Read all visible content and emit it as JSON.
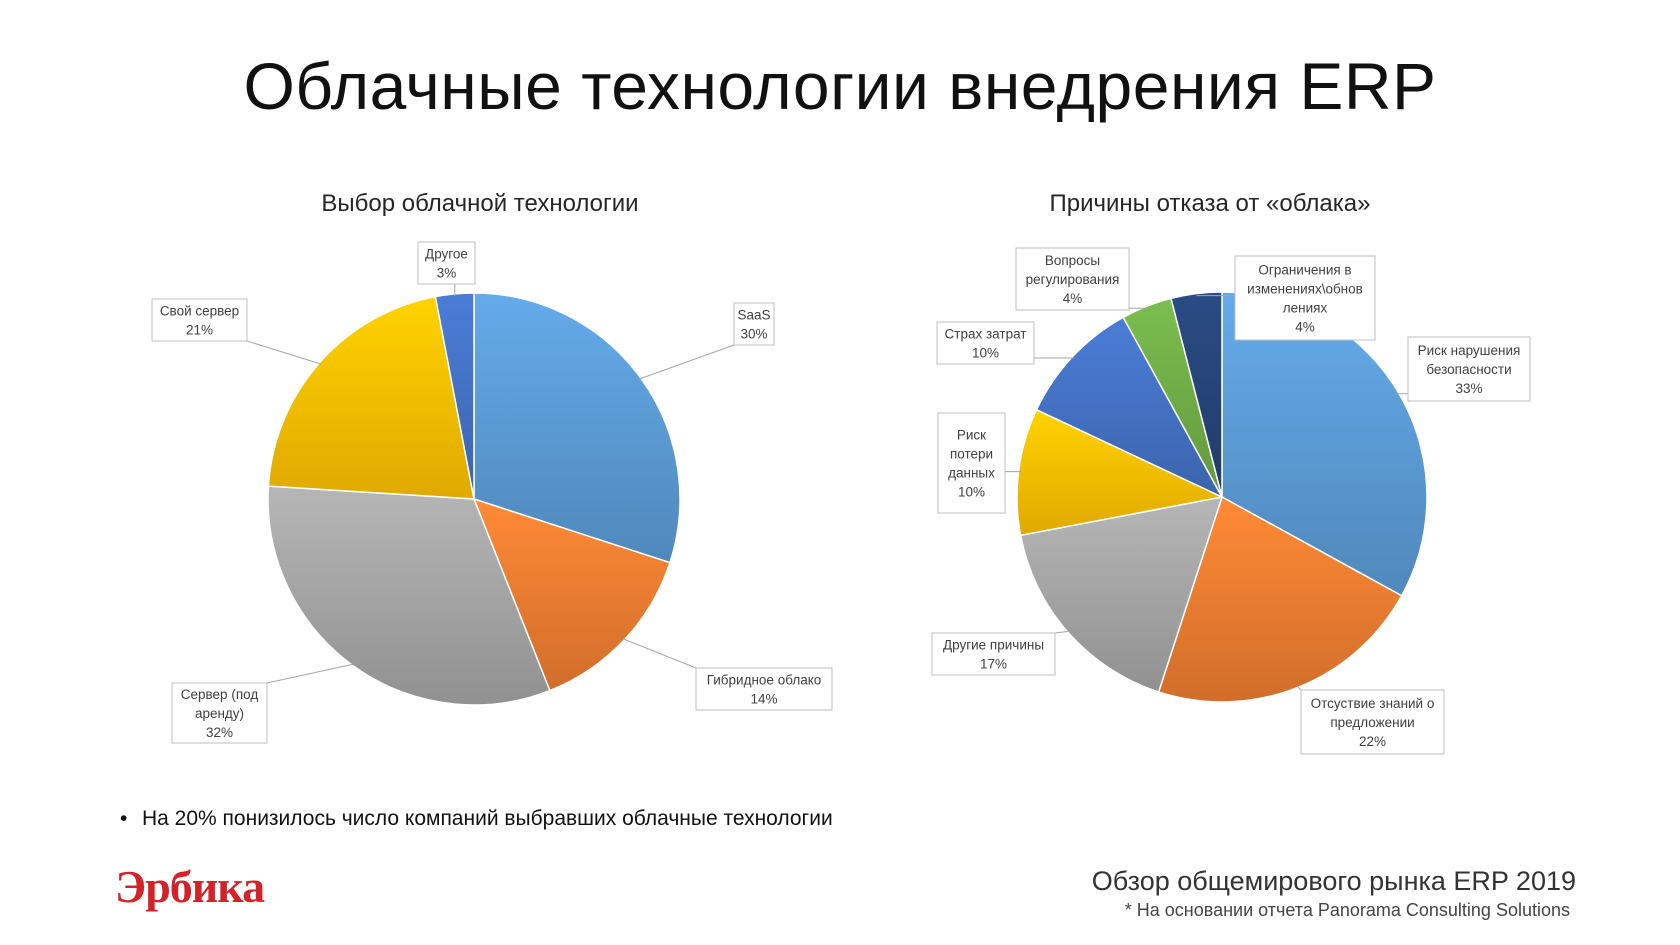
{
  "slide": {
    "title": "Облачные технологии внедрения ERP",
    "bullet": "На 20% понизилось число компаний выбравших облачные технологии",
    "logo": "Эрбика",
    "footer_title": "Обзор общемирового рынка ERP 2019",
    "footer_note": "* На основании отчета Panorama Consulting Solutions"
  },
  "chart_data": [
    {
      "type": "pie",
      "title": "Выбор облачной технологии",
      "slices": [
        {
          "label": [
            "SaaS"
          ],
          "value": 30,
          "color": "#5b9bd5"
        },
        {
          "label": [
            "Гибридное облако"
          ],
          "value": 14,
          "color": "#ed7d31"
        },
        {
          "label": [
            "Сервер (под",
            "аренду)"
          ],
          "value": 32,
          "color": "#a5a5a5"
        },
        {
          "label": [
            "Свой сервер"
          ],
          "value": 21,
          "color": "#ffc000"
        },
        {
          "label": [
            "Другое"
          ],
          "value": 3,
          "color": "#4472c4"
        }
      ]
    },
    {
      "type": "pie",
      "title": "Причины отказа от «облака»",
      "slices": [
        {
          "label": [
            "Риск нарушения",
            "безопасности"
          ],
          "value": 33,
          "color": "#5b9bd5"
        },
        {
          "label": [
            "Отсуствие знаний о",
            "предложении"
          ],
          "value": 22,
          "color": "#ed7d31"
        },
        {
          "label": [
            "Другие причины"
          ],
          "value": 17,
          "color": "#a5a5a5"
        },
        {
          "label": [
            "Риск",
            "потери",
            "данных"
          ],
          "value": 10,
          "color": "#ffc000"
        },
        {
          "label": [
            "Страх затрат"
          ],
          "value": 10,
          "color": "#4472c4"
        },
        {
          "label": [
            "Вопросы",
            "регулирования"
          ],
          "value": 4,
          "color": "#70ad47"
        },
        {
          "label": [
            "Ограничения в",
            "изменениях\\обнов",
            "лениях"
          ],
          "value": 4,
          "color": "#264478"
        }
      ]
    }
  ]
}
